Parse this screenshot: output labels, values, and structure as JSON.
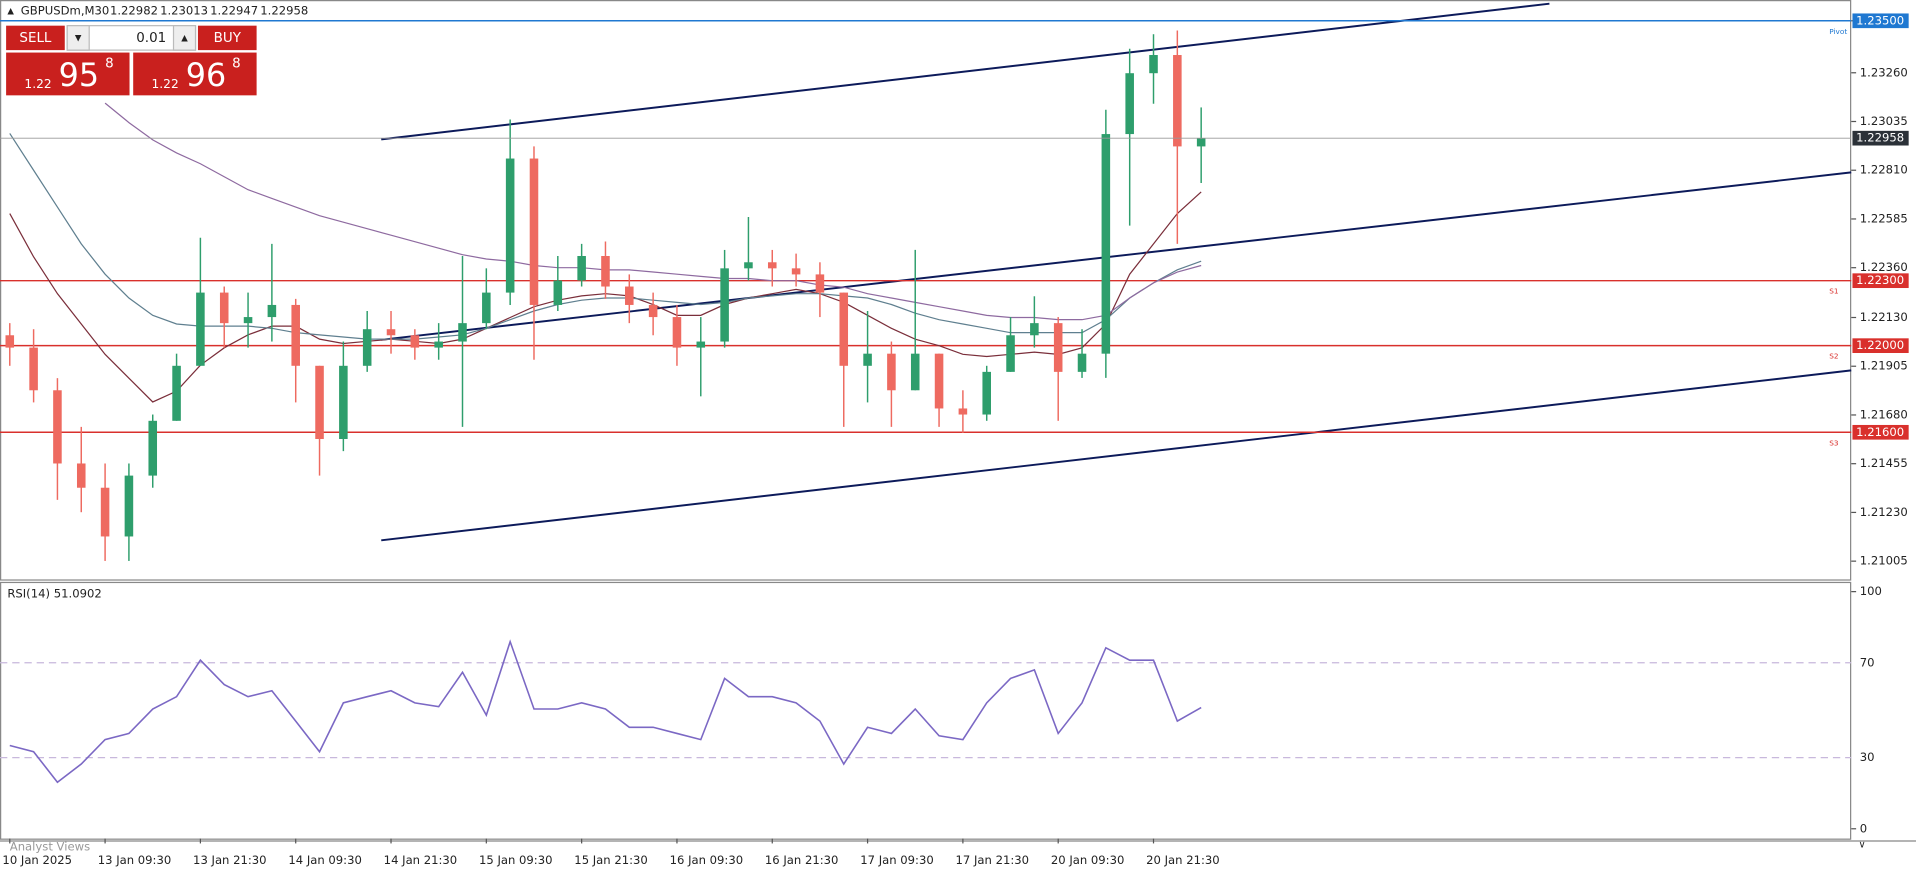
{
  "toolbar": {
    "symbol": "GBPUSDm,M30",
    "quote": [
      1.22982,
      1.23013,
      1.22947,
      1.22958
    ]
  },
  "trade_panel": {
    "sell": "SELL",
    "buy": "BUY",
    "lot": "0.01",
    "bid": [
      "1.22",
      "95",
      "8"
    ],
    "ask": [
      "1.22",
      "96",
      "8"
    ]
  },
  "chart_data": [
    {
      "type": "candlestick",
      "categories": [
        "10 Jan 2025",
        null,
        null,
        null,
        "13 Jan 09:30",
        null,
        null,
        null,
        "13 Jan 21:30",
        null,
        null,
        null,
        "14 Jan 09:30",
        null,
        null,
        null,
        "14 Jan 21:30",
        null,
        null,
        null,
        "15 Jan 09:30",
        null,
        null,
        null,
        "15 Jan 21:30",
        null,
        null,
        null,
        "16 Jan 09:30",
        null,
        null,
        null,
        "16 Jan 21:30",
        null,
        null,
        null,
        "17 Jan 09:30",
        null,
        null,
        null,
        "17 Jan 21:30",
        null,
        null,
        null,
        "20 Jan 09:30",
        null,
        null,
        null,
        "20 Jan 21:30",
        null,
        null
      ],
      "open": [
        1.22048,
        1.21991,
        1.21794,
        1.21456,
        1.21344,
        1.21119,
        1.214,
        1.21653,
        1.21907,
        1.22245,
        1.22104,
        1.22132,
        1.22188,
        1.21907,
        1.21569,
        1.21907,
        1.22076,
        1.22048,
        1.21991,
        1.22019,
        1.22104,
        1.22245,
        1.22864,
        1.22188,
        1.22301,
        1.22414,
        1.22273,
        1.22188,
        1.22132,
        1.21991,
        1.22019,
        1.22357,
        1.22385,
        1.22357,
        1.22329,
        1.22245,
        1.21907,
        1.21963,
        1.21794,
        1.21963,
        1.2171,
        1.21682,
        1.21879,
        1.22048,
        1.22104,
        1.21879,
        1.21963,
        1.22977,
        1.23258,
        1.23342,
        1.2292
      ],
      "high": [
        1.22104,
        1.22076,
        1.2185,
        1.21625,
        1.21456,
        1.21456,
        1.21682,
        1.21963,
        1.22498,
        1.22273,
        1.22245,
        1.2247,
        1.22216,
        1.21907,
        1.22019,
        1.2216,
        1.2216,
        1.22076,
        1.22104,
        1.22414,
        1.22357,
        1.23044,
        1.2292,
        1.22414,
        1.2247,
        1.22481,
        1.22329,
        1.22245,
        1.22188,
        1.22132,
        1.22442,
        1.22594,
        1.22442,
        1.22425,
        1.22385,
        1.22245,
        1.2216,
        1.22019,
        1.22442,
        1.21963,
        1.21794,
        1.21907,
        1.22132,
        1.22228,
        1.22132,
        1.22076,
        1.23089,
        1.23371,
        1.23438,
        1.23455,
        1.231
      ],
      "low": [
        1.21907,
        1.21738,
        1.21288,
        1.21231,
        1.21006,
        1.21006,
        1.21344,
        1.21653,
        1.21907,
        1.21991,
        1.21991,
        1.22019,
        1.21738,
        1.214,
        1.21513,
        1.21879,
        1.21963,
        1.21935,
        1.21935,
        1.21625,
        1.22076,
        1.22188,
        1.21935,
        1.2216,
        1.22273,
        1.22216,
        1.22104,
        1.22048,
        1.21907,
        1.21766,
        1.21991,
        1.22301,
        1.22273,
        1.22273,
        1.22132,
        1.21625,
        1.21738,
        1.21625,
        1.21794,
        1.21625,
        1.21597,
        1.21653,
        1.21879,
        1.21991,
        1.21653,
        1.21851,
        1.21851,
        1.22554,
        1.23117,
        1.2247,
        1.22751
      ],
      "close": [
        1.21991,
        1.21794,
        1.21456,
        1.21344,
        1.21119,
        1.214,
        1.21653,
        1.21907,
        1.22245,
        1.22104,
        1.22132,
        1.22188,
        1.21907,
        1.21569,
        1.21907,
        1.22076,
        1.22048,
        1.21991,
        1.22019,
        1.22104,
        1.22245,
        1.22864,
        1.22188,
        1.22301,
        1.22414,
        1.22273,
        1.22188,
        1.22132,
        1.21991,
        1.22019,
        1.22357,
        1.22385,
        1.22357,
        1.22329,
        1.22245,
        1.21907,
        1.21963,
        1.21794,
        1.21963,
        1.2171,
        1.21682,
        1.21879,
        1.22048,
        1.22104,
        1.21879,
        1.21963,
        1.22977,
        1.23258,
        1.23342,
        1.2292,
        1.22958
      ],
      "up_color": "#2e9e6c",
      "down_color": "#ee6a60",
      "series": [
        {
          "color": "#7a2e3a",
          "values": [
            1.2261,
            1.2241,
            1.2224,
            1.221,
            1.2196,
            1.2185,
            1.2174,
            1.2179,
            1.2191,
            1.2199,
            1.2205,
            1.2209,
            1.2209,
            1.2203,
            1.2201,
            1.2202,
            1.2203,
            1.2202,
            1.2201,
            1.2203,
            1.2208,
            1.2213,
            1.2218,
            1.2221,
            1.2223,
            1.2224,
            1.2223,
            1.2219,
            1.2214,
            1.2214,
            1.2219,
            1.2222,
            1.2224,
            1.2226,
            1.2224,
            1.222,
            1.2214,
            1.2208,
            1.2203,
            1.22,
            1.2196,
            1.2195,
            1.2196,
            1.2197,
            1.2196,
            1.2199,
            1.221,
            1.2233,
            1.2247,
            1.2261,
            1.2271
          ]
        },
        {
          "color": "#5f7f8f",
          "values": [
            1.2298,
            1.2281,
            1.2264,
            1.2247,
            1.2233,
            1.2222,
            1.2214,
            1.221,
            1.2209,
            1.2209,
            1.2209,
            1.2208,
            1.2206,
            1.2205,
            1.2204,
            1.2203,
            1.2203,
            1.2203,
            1.2204,
            1.2205,
            1.2208,
            1.2212,
            1.2216,
            1.2219,
            1.2221,
            1.2222,
            1.2222,
            1.2221,
            1.222,
            1.2219,
            1.222,
            1.2222,
            1.2223,
            1.2224,
            1.2224,
            1.2223,
            1.2222,
            1.2219,
            1.2215,
            1.2212,
            1.221,
            1.2208,
            1.2206,
            1.2206,
            1.2206,
            1.2206,
            1.2212,
            1.2222,
            1.2229,
            1.2235,
            1.2239
          ]
        },
        {
          "color": "#8e6aa0",
          "values": [
            null,
            null,
            null,
            null,
            1.2312,
            1.2303,
            1.2295,
            1.2289,
            1.2284,
            1.2278,
            1.2272,
            1.2268,
            1.2264,
            1.226,
            1.2257,
            1.2254,
            1.2251,
            1.2248,
            1.2245,
            1.2242,
            1.224,
            1.2239,
            1.2237,
            1.2236,
            1.2236,
            1.2235,
            1.2235,
            1.2234,
            1.2233,
            1.2232,
            1.2231,
            1.2231,
            1.223,
            1.223,
            1.2228,
            1.2227,
            1.2224,
            1.2222,
            1.222,
            1.2218,
            1.2216,
            1.2214,
            1.2213,
            1.2213,
            1.2212,
            1.2212,
            1.2214,
            1.2222,
            1.2229,
            1.2234,
            1.2237
          ]
        }
      ],
      "levels": [
        {
          "name": "Pivot",
          "price": {
            "value": 1.235,
            "label": "1.23500"
          },
          "color": "#1f78d1"
        },
        {
          "name": "S1",
          "price": {
            "value": 1.223,
            "label": "1.22300"
          },
          "color": "#d9302c"
        },
        {
          "name": "S2",
          "price": {
            "value": 1.22,
            "label": "1.22000"
          },
          "color": "#d9302c"
        },
        {
          "name": "S3",
          "price": {
            "value": 1.216,
            "label": "1.21600"
          },
          "color": "#d9302c"
        }
      ],
      "ylim": [
        1.20932,
        1.23517
      ],
      "yticks": [
        {
          "value": 1.235,
          "label": "1.23500"
        },
        {
          "value": 1.2326,
          "label": "1.23260"
        },
        {
          "value": 1.23035,
          "label": "1.23035"
        },
        {
          "value": 1.2281,
          "label": "1.22810"
        },
        {
          "value": 1.22585,
          "label": "1.22585"
        },
        {
          "value": 1.2236,
          "label": "1.22360"
        },
        {
          "value": 1.2213,
          "label": "1.22130"
        },
        {
          "value": 1.21905,
          "label": "1.21905"
        },
        {
          "value": 1.2168,
          "label": "1.21680"
        },
        {
          "value": 1.21455,
          "label": "1.21455"
        },
        {
          "value": 1.2123,
          "label": "1.21230"
        },
        {
          "value": 1.21005,
          "label": "1.21005"
        }
      ]
    },
    {
      "type": "line",
      "name": "RSI(14)",
      "color": "#7b68c4",
      "values": [
        35.1,
        32.5,
        19.6,
        27.3,
        37.6,
        40.2,
        50.5,
        55.7,
        71.1,
        60.8,
        55.7,
        58.2,
        45.4,
        32.5,
        53.1,
        55.7,
        58.2,
        53.1,
        51.5,
        66.0,
        47.9,
        78.9,
        50.5,
        50.5,
        53.1,
        50.5,
        42.8,
        42.8,
        40.2,
        37.6,
        63.4,
        55.7,
        55.7,
        53.1,
        45.4,
        27.3,
        42.8,
        40.2,
        50.5,
        39.2,
        37.6,
        53.1,
        63.4,
        67.0,
        40.2,
        53.1,
        76.3,
        71.1,
        71.1,
        45.4,
        51.0902
      ],
      "ylim": [
        0,
        100
      ],
      "yticks": [
        0,
        30,
        70,
        100
      ]
    }
  ],
  "footer": {
    "tab": "Analyst Views"
  }
}
